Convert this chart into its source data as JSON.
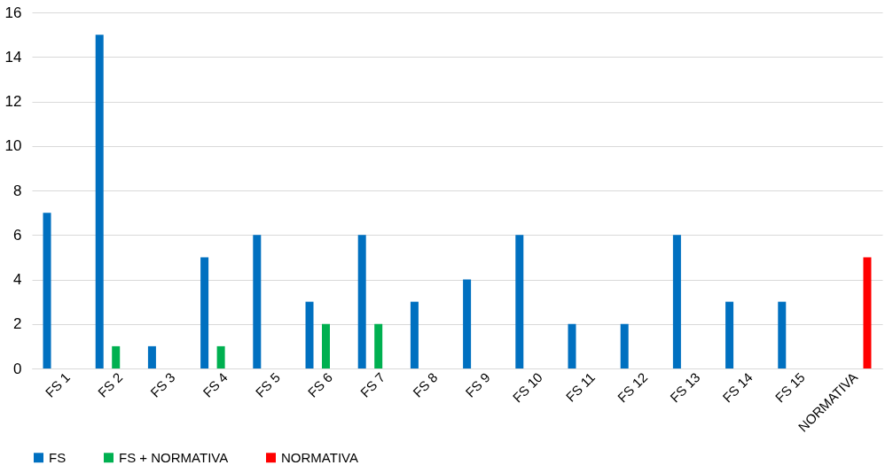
{
  "chart_data": {
    "type": "bar",
    "categories": [
      "FS 1",
      "FS 2",
      "FS 3",
      "FS 4",
      "FS 5",
      "FS 6",
      "FS 7",
      "FS 8",
      "FS 9",
      "FS 10",
      "FS 11",
      "FS 12",
      "FS 13",
      "FS 14",
      "FS 15",
      "NORMATIVA"
    ],
    "series": [
      {
        "name": "FS",
        "color": "#0070c0",
        "values": [
          7,
          15,
          1,
          5,
          6,
          3,
          6,
          3,
          4,
          6,
          2,
          2,
          6,
          3,
          3,
          null
        ]
      },
      {
        "name": "FS + NORMATIVA",
        "color": "#00b050",
        "values": [
          null,
          1,
          null,
          1,
          null,
          2,
          2,
          null,
          null,
          null,
          null,
          null,
          null,
          null,
          null,
          null
        ]
      },
      {
        "name": "NORMATIVA",
        "color": "#ff0000",
        "values": [
          null,
          null,
          null,
          null,
          null,
          null,
          null,
          null,
          null,
          null,
          null,
          null,
          null,
          null,
          null,
          5
        ]
      }
    ],
    "ylim": [
      0,
      16
    ],
    "yticks": [
      0,
      2,
      4,
      6,
      8,
      10,
      12,
      14,
      16
    ],
    "grid": "y",
    "legend": "bottom"
  }
}
